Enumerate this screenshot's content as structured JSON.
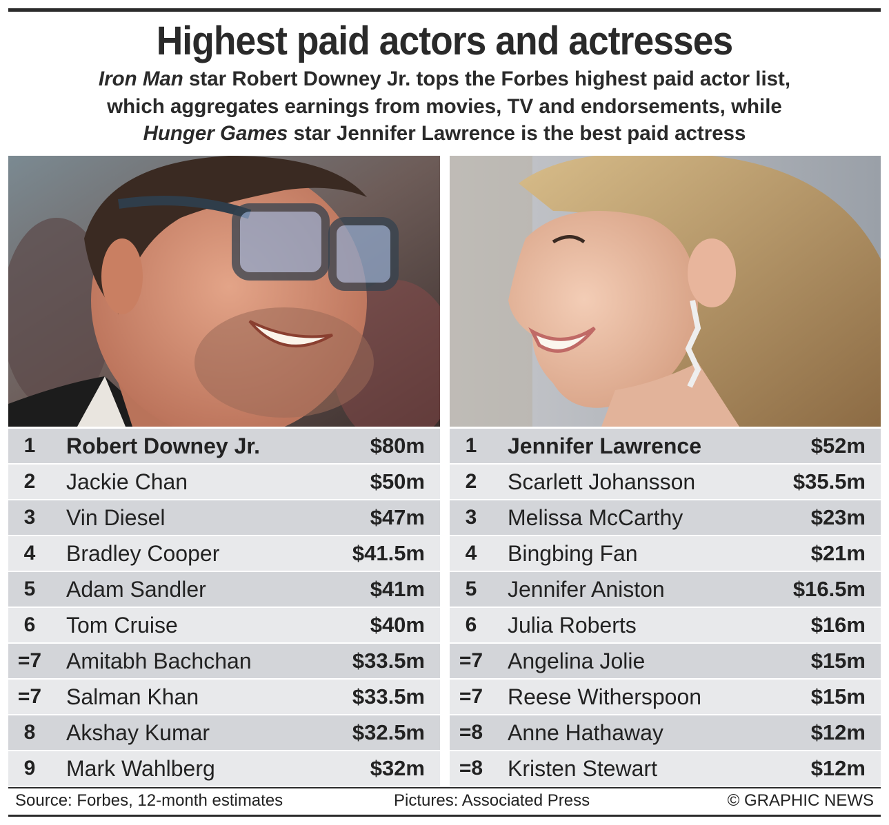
{
  "header": {
    "title": "Highest paid actors and actresses",
    "subtitle": {
      "line1_italic": "Iron Man",
      "line1_rest": " star Robert Downey Jr. tops the Forbes highest paid actor list,",
      "line2": "which aggregates earnings from movies, TV and endorsements, while",
      "line3_italic": "Hunger Games",
      "line3_rest": " star Jennifer Lawrence is the best paid actress"
    }
  },
  "photos": {
    "left": {
      "subject": "Robert Downey Jr. smiling, wearing glasses"
    },
    "right": {
      "subject": "Jennifer Lawrence smiling, in profile"
    }
  },
  "actors": [
    {
      "rank": "1",
      "name": "Robert Downey Jr.",
      "amount": "$80m"
    },
    {
      "rank": "2",
      "name": "Jackie Chan",
      "amount": "$50m"
    },
    {
      "rank": "3",
      "name": "Vin Diesel",
      "amount": "$47m"
    },
    {
      "rank": "4",
      "name": "Bradley Cooper",
      "amount": "$41.5m"
    },
    {
      "rank": "5",
      "name": "Adam Sandler",
      "amount": "$41m"
    },
    {
      "rank": "6",
      "name": "Tom Cruise",
      "amount": "$40m"
    },
    {
      "rank": "=7",
      "name": "Amitabh Bachchan",
      "amount": "$33.5m"
    },
    {
      "rank": "=7",
      "name": "Salman Khan",
      "amount": "$33.5m"
    },
    {
      "rank": "8",
      "name": "Akshay Kumar",
      "amount": "$32.5m"
    },
    {
      "rank": "9",
      "name": "Mark Wahlberg",
      "amount": "$32m"
    }
  ],
  "actresses": [
    {
      "rank": "1",
      "name": "Jennifer Lawrence",
      "amount": "$52m"
    },
    {
      "rank": "2",
      "name": "Scarlett Johansson",
      "amount": "$35.5m"
    },
    {
      "rank": "3",
      "name": "Melissa McCarthy",
      "amount": "$23m"
    },
    {
      "rank": "4",
      "name": "Bingbing Fan",
      "amount": "$21m"
    },
    {
      "rank": "5",
      "name": "Jennifer Aniston",
      "amount": "$16.5m"
    },
    {
      "rank": "6",
      "name": "Julia Roberts",
      "amount": "$16m"
    },
    {
      "rank": "=7",
      "name": "Angelina Jolie",
      "amount": "$15m"
    },
    {
      "rank": "=7",
      "name": "Reese Witherspoon",
      "amount": "$15m"
    },
    {
      "rank": "=8",
      "name": "Anne Hathaway",
      "amount": "$12m"
    },
    {
      "rank": "=8",
      "name": "Kristen Stewart",
      "amount": "$12m"
    }
  ],
  "footer": {
    "source": "Source: Forbes, 12-month estimates",
    "pictures": "Pictures: Associated Press",
    "copyright": "© GRAPHIC NEWS"
  }
}
